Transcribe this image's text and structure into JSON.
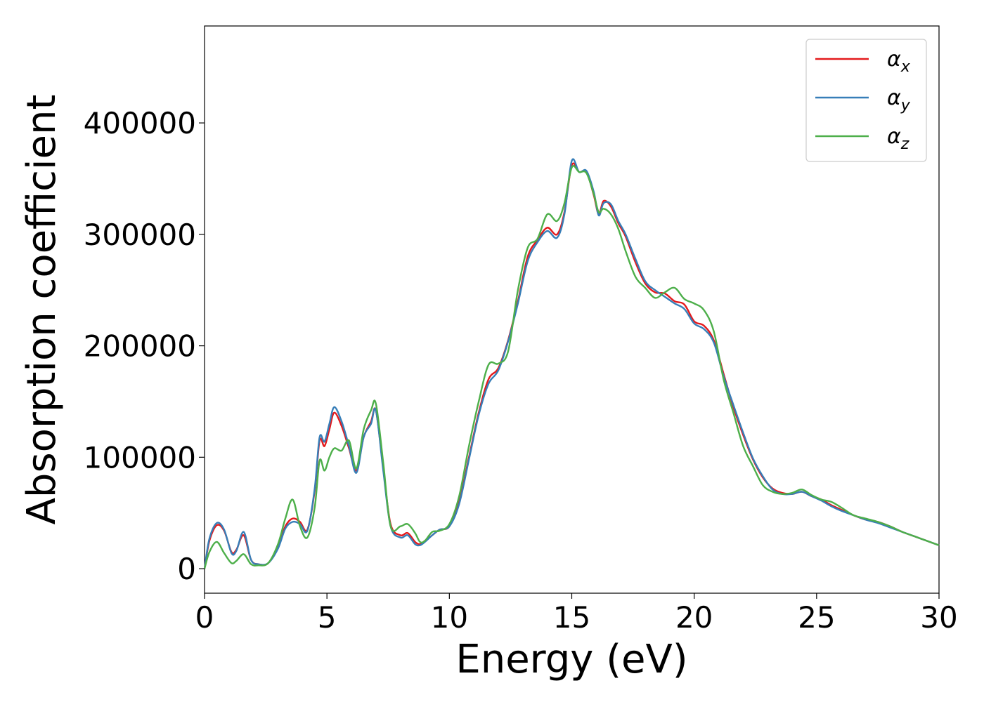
{
  "chart_data": {
    "type": "line",
    "title": "",
    "xlabel": "Energy (eV)",
    "ylabel": "Absorption coefficient",
    "xlim": [
      0,
      30
    ],
    "ylim": [
      -22000,
      487000
    ],
    "xticks": [
      0,
      5,
      10,
      15,
      20,
      25,
      30
    ],
    "xtick_labels": [
      "0",
      "5",
      "10",
      "15",
      "20",
      "25",
      "30"
    ],
    "yticks": [
      0,
      100000,
      200000,
      300000,
      400000
    ],
    "ytick_labels": [
      "0",
      "100000",
      "200000",
      "300000",
      "400000"
    ],
    "grid": false,
    "legend_position": "top-right",
    "series": [
      {
        "name": "α_x",
        "legend_symbol": "α",
        "legend_subscript": "x",
        "color": "#e41a1c",
        "x": [
          0,
          0.2,
          0.5,
          0.8,
          1.1,
          1.3,
          1.6,
          1.9,
          2.2,
          2.6,
          3.0,
          3.3,
          3.6,
          3.9,
          4.2,
          4.5,
          4.7,
          4.9,
          5.1,
          5.3,
          5.6,
          5.9,
          6.2,
          6.5,
          6.8,
          7.0,
          7.3,
          7.6,
          8.0,
          8.3,
          8.6,
          8.8,
          9.0,
          9.3,
          9.6,
          10.0,
          10.4,
          10.8,
          11.2,
          11.6,
          12.0,
          12.4,
          12.8,
          13.2,
          13.6,
          14.0,
          14.4,
          14.7,
          15.0,
          15.3,
          15.6,
          15.9,
          16.1,
          16.3,
          16.6,
          16.9,
          17.2,
          17.6,
          18.0,
          18.4,
          18.8,
          19.2,
          19.6,
          20.0,
          20.4,
          20.8,
          21.2,
          21.6,
          22.0,
          22.4,
          22.8,
          23.2,
          23.6,
          24.0,
          24.4,
          24.8,
          25.2,
          25.6,
          26.0,
          26.5,
          27.0,
          27.5,
          28.0,
          28.5,
          29.0,
          29.5,
          30.0
        ],
        "values": [
          0,
          25000,
          39000,
          34000,
          15000,
          17000,
          30000,
          8000,
          4000,
          5000,
          20000,
          38000,
          45000,
          42000,
          35000,
          70000,
          115000,
          110000,
          125000,
          140000,
          128000,
          108000,
          88000,
          118000,
          132000,
          142000,
          90000,
          40000,
          30000,
          32000,
          24000,
          22000,
          25000,
          30000,
          35000,
          38000,
          60000,
          100000,
          140000,
          170000,
          180000,
          205000,
          240000,
          280000,
          295000,
          306000,
          300000,
          320000,
          362000,
          356000,
          356000,
          335000,
          318000,
          330000,
          325000,
          310000,
          298000,
          275000,
          256000,
          248000,
          247000,
          240000,
          237000,
          222000,
          218000,
          205000,
          175000,
          145000,
          120000,
          98000,
          82000,
          72000,
          68000,
          67000,
          69000,
          65000,
          62000,
          57000,
          53000,
          48000,
          44000,
          42000,
          38000,
          33000,
          29000,
          25000,
          21000
        ]
      },
      {
        "name": "α_y",
        "legend_symbol": "α",
        "legend_subscript": "y",
        "color": "#377eb8",
        "x": [
          0,
          0.2,
          0.5,
          0.8,
          1.1,
          1.3,
          1.6,
          1.9,
          2.2,
          2.6,
          3.0,
          3.3,
          3.6,
          3.9,
          4.2,
          4.5,
          4.7,
          4.9,
          5.1,
          5.3,
          5.6,
          5.9,
          6.2,
          6.5,
          6.8,
          7.0,
          7.3,
          7.6,
          8.0,
          8.3,
          8.6,
          8.8,
          9.0,
          9.3,
          9.6,
          10.0,
          10.4,
          10.8,
          11.2,
          11.6,
          12.0,
          12.4,
          12.8,
          13.2,
          13.6,
          14.0,
          14.4,
          14.7,
          15.0,
          15.3,
          15.6,
          15.9,
          16.1,
          16.3,
          16.6,
          16.9,
          17.2,
          17.6,
          18.0,
          18.4,
          18.8,
          19.2,
          19.6,
          20.0,
          20.4,
          20.8,
          21.2,
          21.6,
          22.0,
          22.4,
          22.8,
          23.2,
          23.6,
          24.0,
          24.4,
          24.8,
          25.2,
          25.6,
          26.0,
          26.5,
          27.0,
          27.5,
          28.0,
          28.5,
          29.0,
          29.5,
          30.0
        ],
        "values": [
          0,
          27000,
          41000,
          35000,
          14000,
          16000,
          33000,
          8000,
          4000,
          5000,
          18000,
          36000,
          42000,
          40000,
          34000,
          72000,
          118000,
          114000,
          130000,
          145000,
          132000,
          110000,
          86000,
          118000,
          130000,
          142000,
          88000,
          38000,
          28000,
          30000,
          22000,
          21000,
          24000,
          30000,
          35000,
          38000,
          58000,
          98000,
          138000,
          166000,
          178000,
          204000,
          238000,
          276000,
          293000,
          303000,
          297000,
          318000,
          366000,
          356000,
          357000,
          338000,
          317000,
          328000,
          327000,
          312000,
          300000,
          278000,
          258000,
          250000,
          244000,
          238000,
          233000,
          220000,
          215000,
          203000,
          173000,
          147000,
          122000,
          99000,
          83000,
          71000,
          67000,
          67000,
          69000,
          65000,
          61000,
          56000,
          52000,
          48000,
          44000,
          41000,
          37000,
          33000,
          29000,
          25000,
          21000
        ]
      },
      {
        "name": "α_z",
        "legend_symbol": "α",
        "legend_subscript": "z",
        "color": "#4daf4a",
        "x": [
          0,
          0.2,
          0.5,
          0.8,
          1.1,
          1.3,
          1.6,
          1.9,
          2.2,
          2.6,
          3.0,
          3.3,
          3.6,
          3.9,
          4.2,
          4.5,
          4.7,
          4.9,
          5.1,
          5.3,
          5.6,
          5.9,
          6.2,
          6.5,
          6.8,
          7.0,
          7.3,
          7.6,
          8.0,
          8.3,
          8.6,
          8.8,
          9.0,
          9.3,
          9.6,
          10.0,
          10.4,
          10.8,
          11.2,
          11.6,
          12.0,
          12.4,
          12.8,
          13.2,
          13.6,
          14.0,
          14.4,
          14.7,
          15.0,
          15.3,
          15.6,
          15.9,
          16.1,
          16.3,
          16.6,
          16.9,
          17.2,
          17.6,
          18.0,
          18.4,
          18.8,
          19.2,
          19.6,
          20.0,
          20.4,
          20.8,
          21.2,
          21.6,
          22.0,
          22.4,
          22.8,
          23.2,
          23.6,
          24.0,
          24.4,
          24.8,
          25.2,
          25.6,
          26.0,
          26.5,
          27.0,
          27.5,
          28.0,
          28.5,
          29.0,
          29.5,
          30.0
        ],
        "values": [
          0,
          15000,
          24000,
          14000,
          5000,
          7000,
          13000,
          4000,
          3000,
          5000,
          22000,
          45000,
          62000,
          38000,
          28000,
          55000,
          97000,
          88000,
          100000,
          108000,
          106000,
          115000,
          90000,
          125000,
          142000,
          148000,
          95000,
          38000,
          38000,
          40000,
          32000,
          24000,
          25000,
          33000,
          34000,
          40000,
          65000,
          110000,
          150000,
          183000,
          184000,
          195000,
          250000,
          288000,
          296000,
          318000,
          312000,
          328000,
          360000,
          356000,
          355000,
          336000,
          320000,
          323000,
          318000,
          305000,
          285000,
          262000,
          252000,
          243000,
          248000,
          252000,
          242000,
          238000,
          232000,
          213000,
          170000,
          140000,
          110000,
          92000,
          75000,
          69000,
          67000,
          68000,
          71000,
          66000,
          62000,
          60000,
          55000,
          48000,
          45000,
          42000,
          38000,
          33000,
          29000,
          25000,
          21000
        ]
      }
    ]
  }
}
